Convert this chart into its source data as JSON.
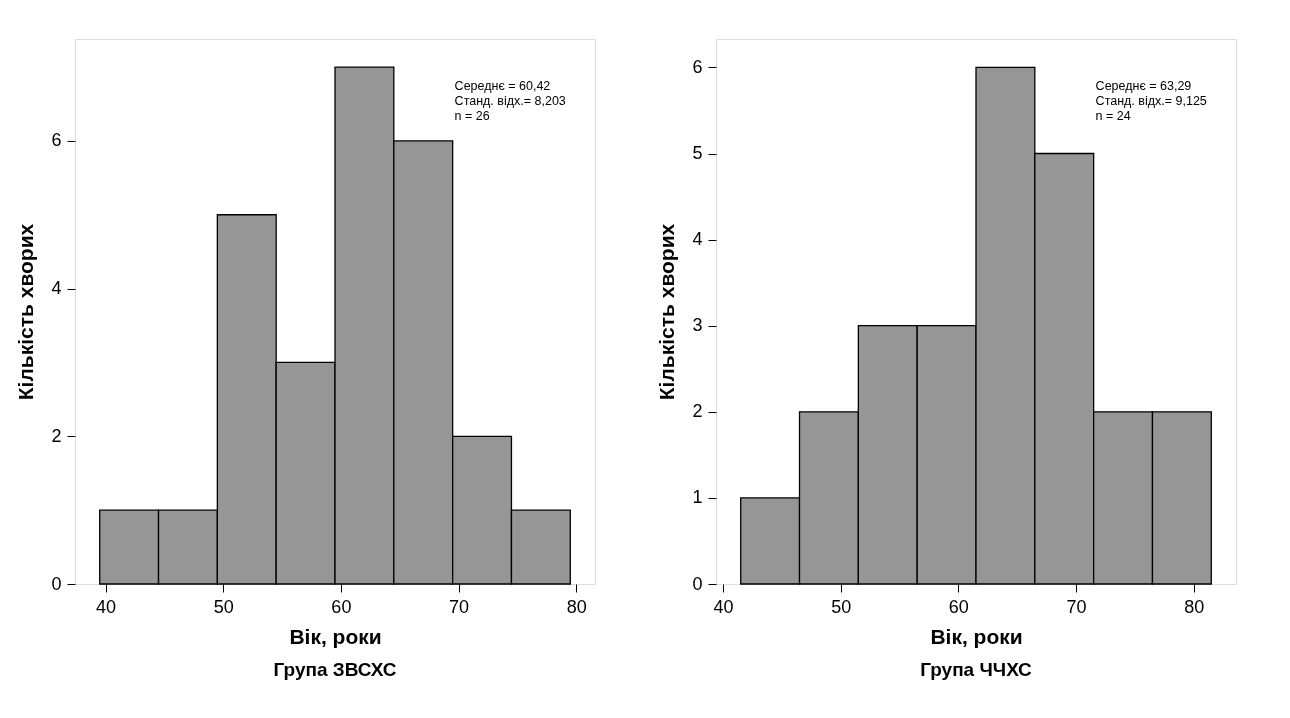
{
  "chart_data": [
    {
      "type": "histogram",
      "title": "Група ЗВСХС",
      "xlabel": "Вік, роки",
      "ylabel": "Кількість хворих",
      "bins": [
        39.5,
        44.5,
        49.5,
        54.5,
        59.5,
        64.5,
        69.5,
        74.5,
        79.5
      ],
      "values": [
        1,
        1,
        5,
        3,
        7,
        6,
        2,
        1
      ],
      "color": "#969696",
      "xlim": [
        37.4,
        81.6
      ],
      "xticks": [
        40,
        50,
        60,
        70,
        80
      ],
      "ylim": [
        0,
        7.38
      ],
      "yticks": [
        0,
        2,
        4,
        6
      ],
      "grid": false,
      "annotations": [
        "Середнє = 60,42",
        "Станд. відх.= 8,203",
        "n = 26"
      ]
    },
    {
      "type": "histogram",
      "title": "Група ЧЧХС",
      "xlabel": "Вік, роки",
      "ylabel": "Кількість хворих",
      "bins": [
        41.5,
        46.5,
        51.5,
        56.5,
        61.5,
        66.5,
        71.5,
        76.5,
        81.5
      ],
      "values": [
        1,
        2,
        3,
        3,
        6,
        5,
        2,
        2
      ],
      "color": "#969696",
      "xlim": [
        39.4,
        83.6
      ],
      "xticks": [
        40,
        50,
        60,
        70,
        80
      ],
      "ylim": [
        0,
        6.33
      ],
      "yticks": [
        0,
        1,
        2,
        3,
        4,
        5,
        6
      ],
      "grid": false,
      "annotations": [
        "Середнє = 63,29",
        "Станд. відх.= 9,125",
        "n = 24"
      ]
    }
  ]
}
